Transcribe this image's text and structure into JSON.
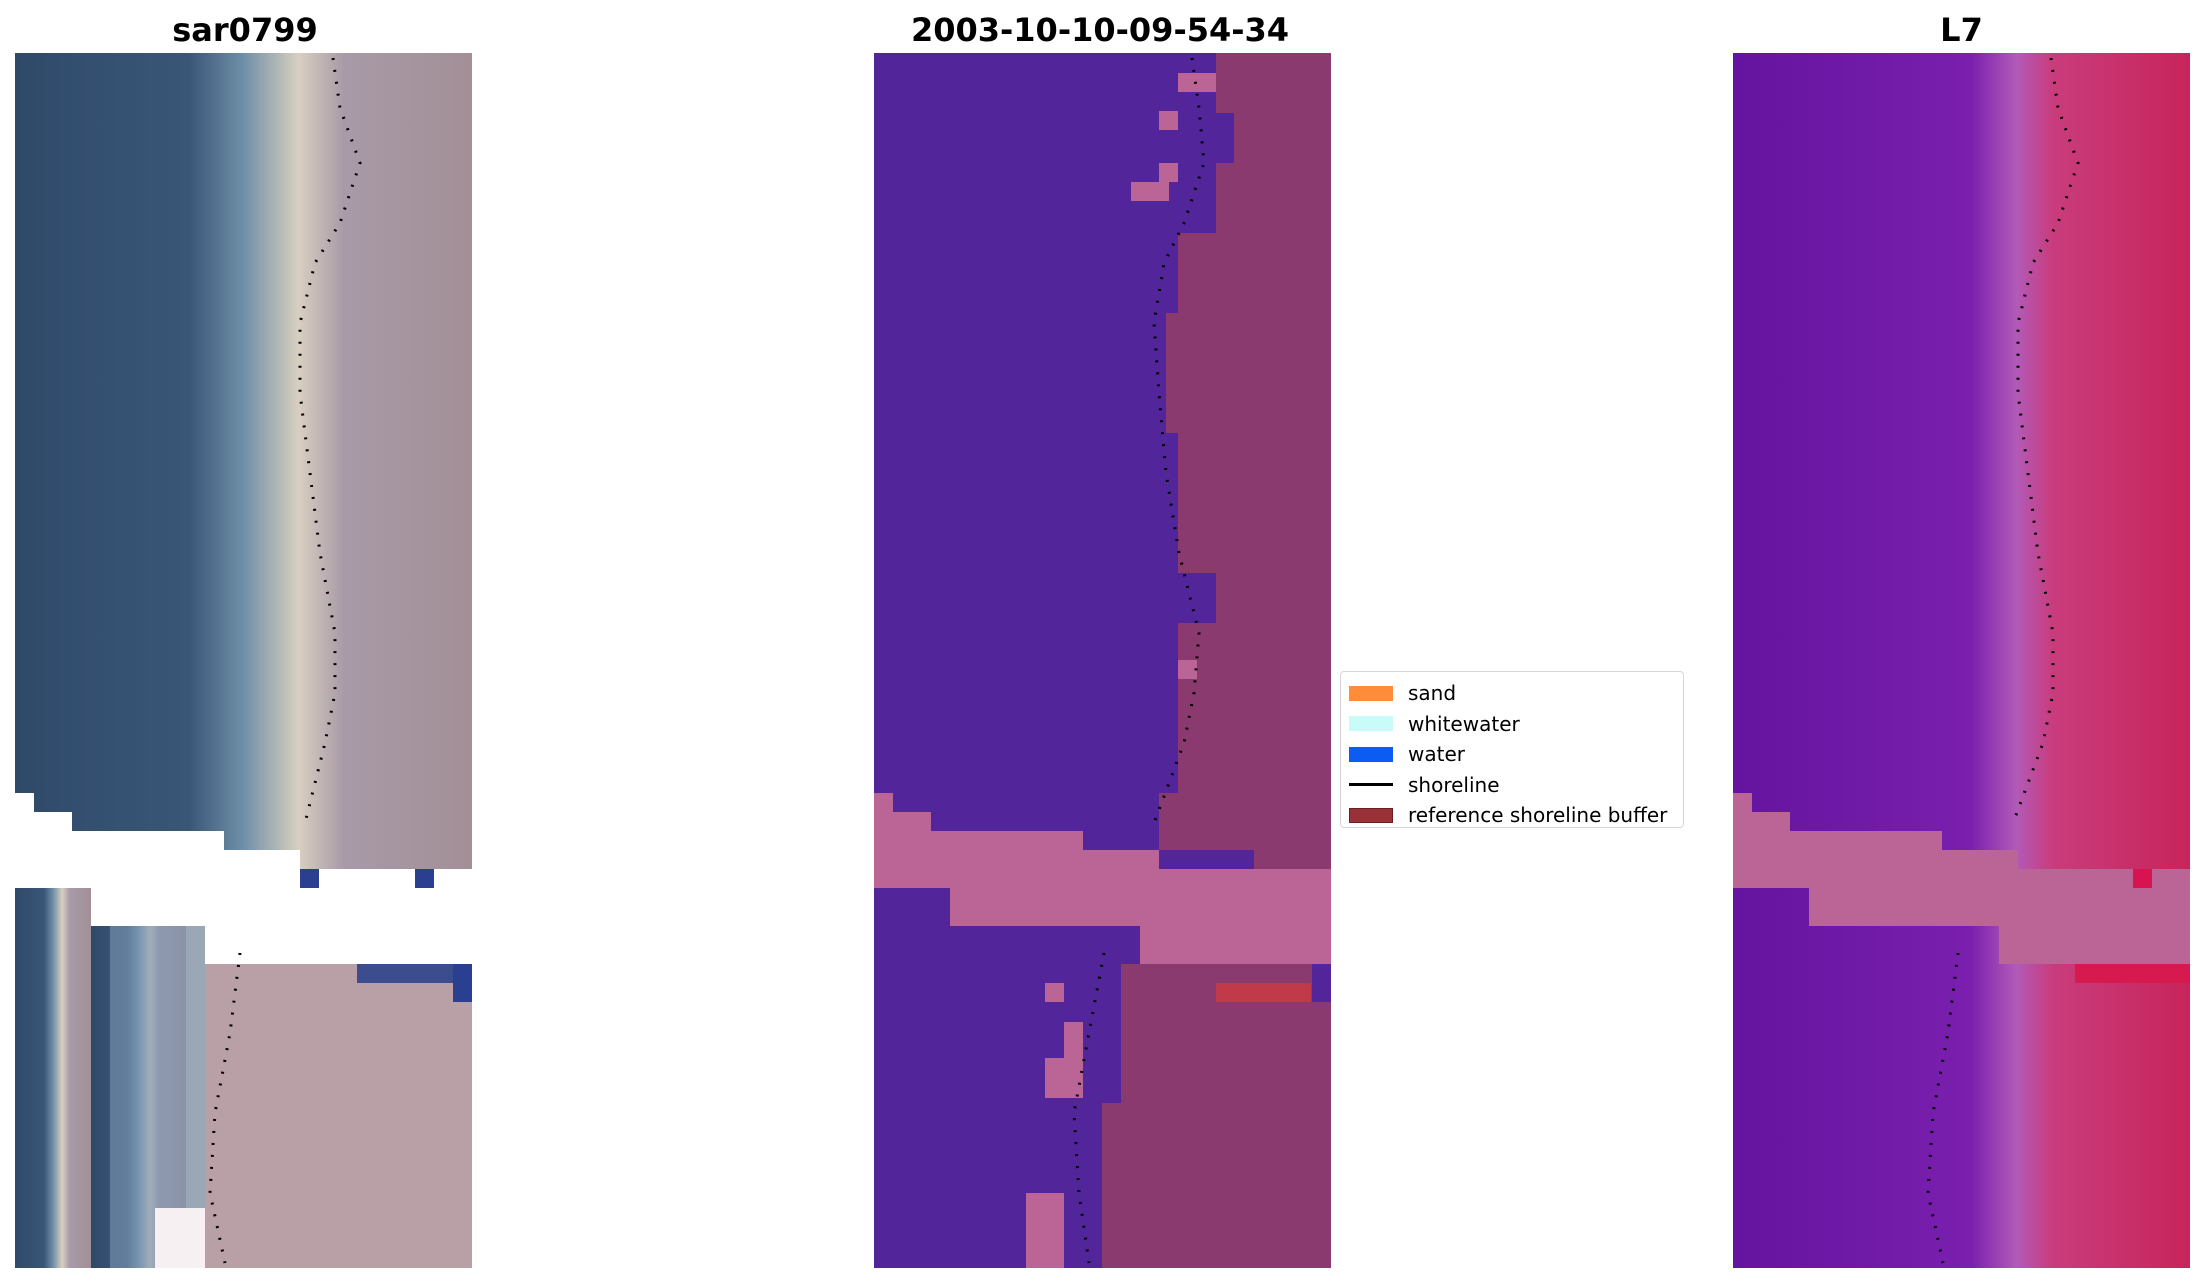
{
  "panels": {
    "left": {
      "title": "sar0799"
    },
    "center": {
      "title": "2003-10-10-09-54-34"
    },
    "right": {
      "title": "L7"
    }
  },
  "legend": {
    "items": [
      {
        "label": "sand",
        "kind": "patch",
        "color": "#ff8c3a"
      },
      {
        "label": "whitewater",
        "kind": "patch",
        "color": "#c9fbf8"
      },
      {
        "label": "water",
        "kind": "patch",
        "color": "#0a5cf2"
      },
      {
        "label": "shoreline",
        "kind": "line",
        "color": "#000000"
      },
      {
        "label": "reference shoreline buffer",
        "kind": "patch",
        "color": "#9a3138"
      }
    ]
  },
  "colors": {
    "rgb_water": "#37506e",
    "rgb_beach": "#d6c9b8",
    "rgb_land": "#9a8e99",
    "class_water_overlay": "#53259a",
    "class_land_overlay": "#8a3a6e",
    "class_nodata_band": "#bb6597",
    "ndwi_water": "#6a16a3",
    "ndwi_land": "#c72a62",
    "ndwi_nodata_band": "#bb6597",
    "shoreline": "#000000"
  }
}
